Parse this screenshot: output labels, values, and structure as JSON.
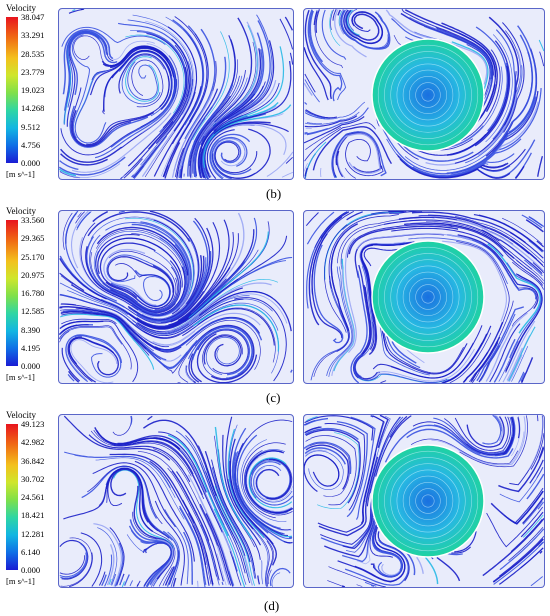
{
  "rows": [
    {
      "id": "b",
      "label": "(b)",
      "legend": {
        "title": "Velocity",
        "ticks": [
          "38.047",
          "33.291",
          "28.535",
          "23.779",
          "19.023",
          "14.268",
          "9.512",
          "4.756",
          "0.000"
        ],
        "unit": "[m s^-1]"
      }
    },
    {
      "id": "c",
      "label": "(c)",
      "legend": {
        "title": "Velocity",
        "ticks": [
          "33.560",
          "29.365",
          "25.170",
          "20.975",
          "16.780",
          "12.585",
          "8.390",
          "4.195",
          "0.000"
        ],
        "unit": "[m s^-1]"
      }
    },
    {
      "id": "d",
      "label": "(d)",
      "legend": {
        "title": "Velocity",
        "ticks": [
          "49.123",
          "42.982",
          "36.842",
          "30.702",
          "24.561",
          "18.421",
          "12.281",
          "6.140",
          "0.000"
        ],
        "unit": "[m s^-1]"
      }
    }
  ],
  "colors": {
    "streamline_dark": "#1a1fc8",
    "streamline_light": "#9aa6f4",
    "high_velocity": "#1fd3a0",
    "frame": "#5a66c8"
  }
}
